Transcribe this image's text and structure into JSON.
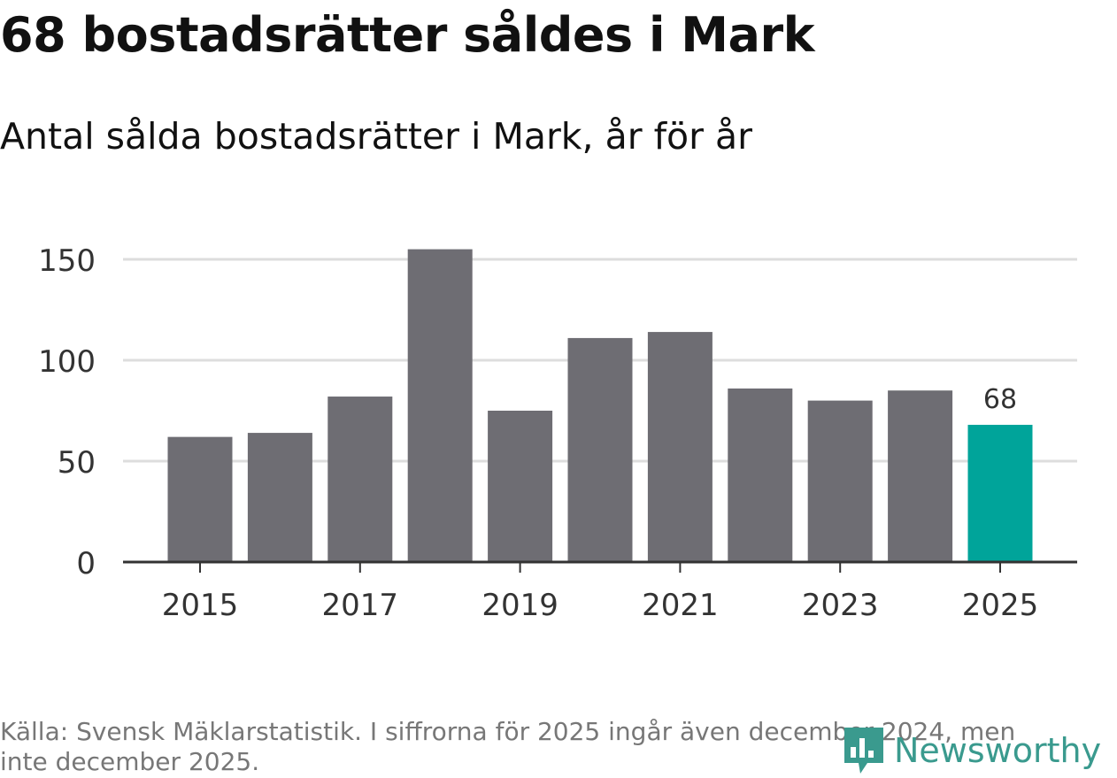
{
  "title": "68 bostadsrätter såldes i Mark",
  "subtitle": "Antal sålda bostadsrätter i Mark, år för år",
  "source": "Källa: Svensk Mäklarstatistik. I siffrorna för 2025 ingår även december 2024, men inte december 2025.",
  "logo": {
    "text": "Newsworthy",
    "icon": "newsworthy-logo-icon"
  },
  "colors": {
    "bar": "#6e6d73",
    "highlight": "#00a49a",
    "grid": "#dddddd",
    "axis": "#333333"
  },
  "chart_data": {
    "type": "bar",
    "title": "Antal sålda bostadsrätter i Mark, år för år",
    "xlabel": "",
    "ylabel": "",
    "categories": [
      "2015",
      "2016",
      "2017",
      "2018",
      "2019",
      "2020",
      "2021",
      "2022",
      "2023",
      "2024",
      "2025"
    ],
    "values": [
      62,
      64,
      82,
      155,
      75,
      111,
      114,
      86,
      80,
      85,
      68
    ],
    "x_ticks": [
      "2015",
      "2017",
      "2019",
      "2021",
      "2023",
      "2025"
    ],
    "y_ticks": [
      0,
      50,
      100,
      150
    ],
    "y_tick_labels": [
      "0",
      "50",
      "100",
      "150"
    ],
    "ylim": [
      0,
      160
    ],
    "highlight": {
      "category": "2025",
      "label": "68"
    },
    "grid": true
  }
}
